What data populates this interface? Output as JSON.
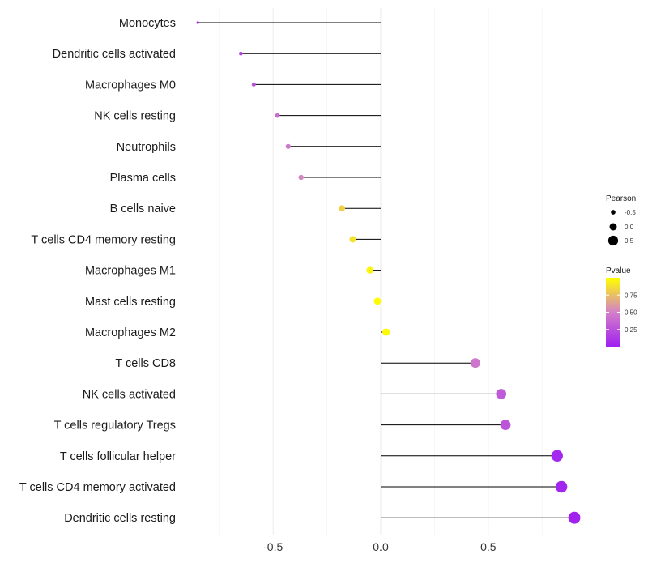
{
  "chart_data": {
    "type": "lollipop",
    "title": "",
    "xlabel": "",
    "ylabel": "",
    "xlim": [
      -0.9,
      0.95
    ],
    "x_ticks": [
      -0.5,
      0.0,
      0.5
    ],
    "x_tick_labels": [
      "-0.5",
      "0.0",
      "0.5"
    ],
    "grid": true,
    "baseline": 0,
    "categories": [
      "Monocytes",
      "Dendritic cells activated",
      "Macrophages M0",
      "NK cells resting",
      "Neutrophils",
      "Plasma cells",
      "B cells naive",
      "T cells CD4 memory resting",
      "Macrophages M1",
      "Mast cells resting",
      "Macrophages M2",
      "T cells CD8",
      "NK cells activated",
      "T cells regulatory  Tregs ",
      "T cells follicular helper",
      "T cells CD4 memory activated",
      "Dendritic cells resting"
    ],
    "values": [
      -0.85,
      -0.65,
      -0.59,
      -0.48,
      -0.43,
      -0.37,
      -0.18,
      -0.13,
      -0.05,
      -0.015,
      0.025,
      0.44,
      0.56,
      0.58,
      0.82,
      0.84,
      0.9
    ],
    "pvalues": [
      0.02,
      0.18,
      0.25,
      0.4,
      0.45,
      0.52,
      0.82,
      0.88,
      0.96,
      0.99,
      0.98,
      0.45,
      0.3,
      0.27,
      0.04,
      0.03,
      0.01
    ],
    "legend": {
      "placement": "right",
      "size": {
        "title": "Pearson",
        "values": [
          -0.5,
          0.0,
          0.5
        ],
        "labels": [
          "-0.5",
          "0.0",
          "0.5"
        ]
      },
      "color": {
        "title": "Pvalue",
        "range": [
          0.0,
          1.0
        ],
        "ticks": [
          0.25,
          0.5,
          0.75
        ],
        "tick_labels": [
          "0.25",
          "0.50",
          "0.75"
        ],
        "low_color": "#a020f0",
        "mid_color": "#d380c8",
        "high_color": "#ffff00"
      }
    }
  }
}
